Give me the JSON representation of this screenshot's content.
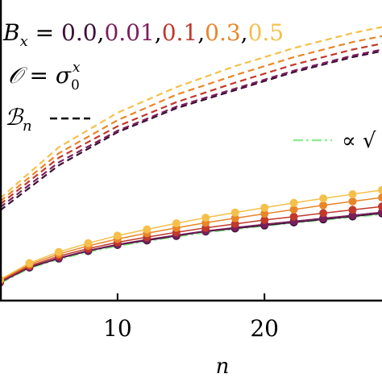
{
  "chart_data": {
    "type": "line",
    "xlabel": "n",
    "x_ticks": [
      10,
      20
    ],
    "xlim": [
      2,
      28
    ],
    "ylim": [
      0,
      1
    ],
    "legend": {
      "parameter_label": "B",
      "parameter_subscript": "x",
      "equals": " = ",
      "values_text": [
        "0.0",
        "0.01",
        "0.1",
        "0.3",
        "0.5"
      ],
      "observable_label": "𝒪 = σ",
      "observable_sup": "x",
      "observable_sub": "0",
      "bound_label": "ℬ",
      "bound_subscript": "n",
      "fit_label": "∝ √"
    },
    "colors": {
      "series": [
        "#3b0f36",
        "#7a1f5c",
        "#c0392b",
        "#e8862a",
        "#f5c04a"
      ],
      "fit": "#90ee90",
      "axis": "#000000"
    },
    "bound_series": [
      {
        "name": "0.0",
        "x": [
          2,
          6,
          10,
          14,
          18,
          22,
          26,
          28
        ],
        "y": [
          0.3,
          0.45,
          0.56,
          0.64,
          0.7,
          0.76,
          0.81,
          0.83
        ]
      },
      {
        "name": "0.01",
        "x": [
          2,
          6,
          10,
          14,
          18,
          22,
          26,
          28
        ],
        "y": [
          0.31,
          0.46,
          0.565,
          0.645,
          0.705,
          0.765,
          0.815,
          0.835
        ]
      },
      {
        "name": "0.1",
        "x": [
          2,
          6,
          10,
          14,
          18,
          22,
          26,
          28
        ],
        "y": [
          0.32,
          0.475,
          0.58,
          0.66,
          0.725,
          0.785,
          0.835,
          0.855
        ]
      },
      {
        "name": "0.3",
        "x": [
          2,
          6,
          10,
          14,
          18,
          22,
          26,
          28
        ],
        "y": [
          0.33,
          0.49,
          0.6,
          0.685,
          0.75,
          0.81,
          0.86,
          0.88
        ]
      },
      {
        "name": "0.5",
        "x": [
          2,
          6,
          10,
          14,
          18,
          22,
          26,
          28
        ],
        "y": [
          0.34,
          0.51,
          0.625,
          0.71,
          0.78,
          0.84,
          0.89,
          0.91
        ]
      }
    ],
    "observable_series": [
      {
        "name": "0.0",
        "x": [
          2,
          4,
          6,
          8,
          10,
          12,
          14,
          16,
          18,
          20,
          22,
          24,
          26,
          28
        ],
        "y": [
          0.06,
          0.11,
          0.14,
          0.165,
          0.185,
          0.2,
          0.215,
          0.23,
          0.24,
          0.25,
          0.26,
          0.27,
          0.28,
          0.29
        ]
      },
      {
        "name": "0.01",
        "x": [
          2,
          4,
          6,
          8,
          10,
          12,
          14,
          16,
          18,
          20,
          22,
          24,
          26,
          28
        ],
        "y": [
          0.062,
          0.112,
          0.142,
          0.167,
          0.187,
          0.203,
          0.218,
          0.232,
          0.243,
          0.254,
          0.264,
          0.274,
          0.284,
          0.294
        ]
      },
      {
        "name": "0.1",
        "x": [
          2,
          4,
          6,
          8,
          10,
          12,
          14,
          16,
          18,
          20,
          22,
          24,
          26,
          28
        ],
        "y": [
          0.065,
          0.115,
          0.148,
          0.173,
          0.194,
          0.211,
          0.227,
          0.242,
          0.255,
          0.268,
          0.279,
          0.291,
          0.302,
          0.313
        ]
      },
      {
        "name": "0.3",
        "x": [
          2,
          4,
          6,
          8,
          10,
          12,
          14,
          16,
          18,
          20,
          22,
          24,
          26,
          28
        ],
        "y": [
          0.068,
          0.12,
          0.155,
          0.182,
          0.205,
          0.224,
          0.242,
          0.259,
          0.274,
          0.289,
          0.303,
          0.317,
          0.33,
          0.343
        ]
      },
      {
        "name": "0.5",
        "x": [
          2,
          4,
          6,
          8,
          10,
          12,
          14,
          16,
          18,
          20,
          22,
          24,
          26,
          28
        ],
        "y": [
          0.07,
          0.125,
          0.162,
          0.191,
          0.216,
          0.237,
          0.257,
          0.276,
          0.293,
          0.309,
          0.325,
          0.34,
          0.354,
          0.368
        ]
      }
    ],
    "fit_series": {
      "x": [
        2,
        4,
        6,
        8,
        10,
        12,
        14,
        16,
        18,
        20,
        22,
        24,
        26,
        28
      ],
      "y": [
        0.058,
        0.108,
        0.138,
        0.162,
        0.182,
        0.198,
        0.213,
        0.227,
        0.238,
        0.249,
        0.259,
        0.269,
        0.278,
        0.287
      ]
    }
  }
}
